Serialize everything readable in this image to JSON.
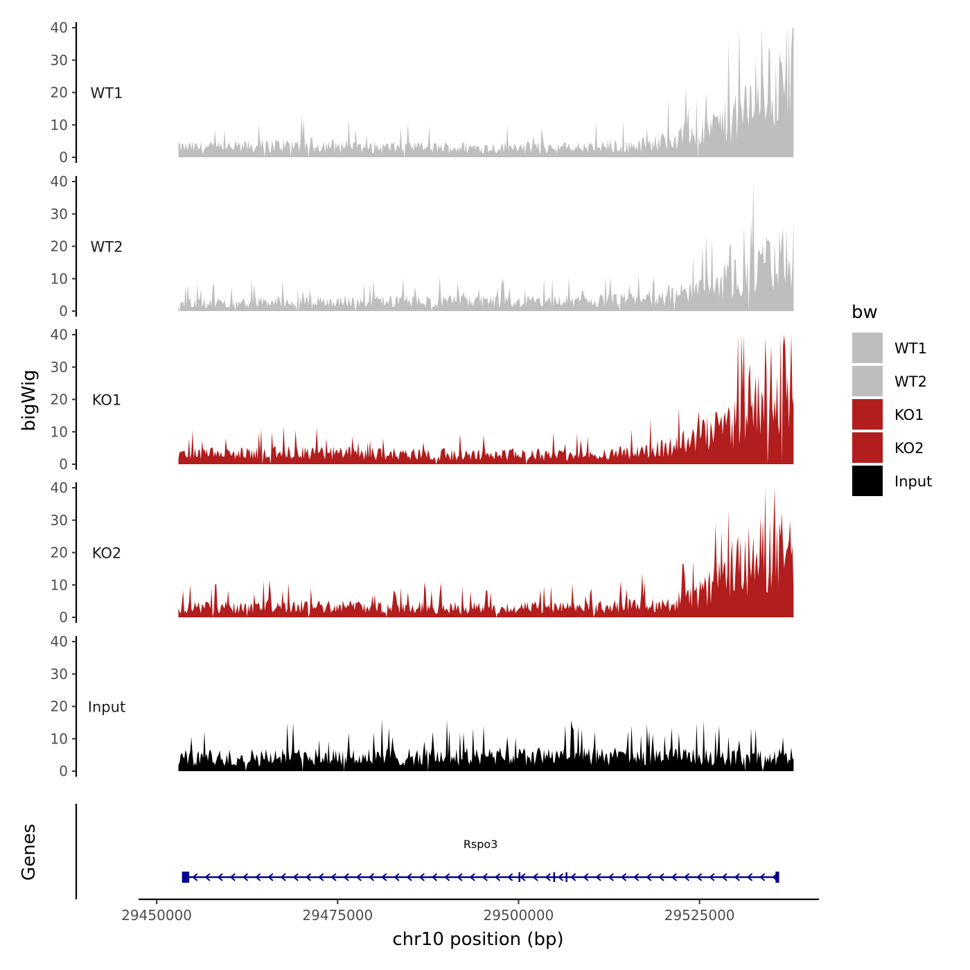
{
  "chart_data": {
    "type": "area",
    "title": "",
    "ylabel": "bigWig",
    "xlabel": "chr10 position (bp)",
    "chromosome": "chr10",
    "xlim": [
      29447500,
      29541500
    ],
    "ylim": [
      0,
      40
    ],
    "y_ticks": [
      0,
      10,
      20,
      30,
      40
    ],
    "x_ticks": [
      29450000,
      29475000,
      29500000,
      29525000
    ],
    "x_tick_labels": [
      "29450000",
      "29475000",
      "29500000",
      "29525000"
    ],
    "coverage_range": [
      29453000,
      29538000
    ],
    "series": [
      {
        "name": "WT1",
        "color": "#bebebe",
        "profile": [
          {
            "x": 29453000,
            "y": 3
          },
          {
            "x": 29460000,
            "y": 3
          },
          {
            "x": 29470000,
            "y": 4
          },
          {
            "x": 29480000,
            "y": 3
          },
          {
            "x": 29490000,
            "y": 3
          },
          {
            "x": 29500000,
            "y": 3
          },
          {
            "x": 29510000,
            "y": 3
          },
          {
            "x": 29518000,
            "y": 4
          },
          {
            "x": 29522000,
            "y": 6
          },
          {
            "x": 29526000,
            "y": 9
          },
          {
            "x": 29530000,
            "y": 12
          },
          {
            "x": 29532000,
            "y": 17
          },
          {
            "x": 29534000,
            "y": 22
          },
          {
            "x": 29538000,
            "y": 22
          }
        ]
      },
      {
        "name": "WT2",
        "color": "#bebebe",
        "profile": [
          {
            "x": 29453000,
            "y": 2.5
          },
          {
            "x": 29470000,
            "y": 3
          },
          {
            "x": 29490000,
            "y": 3
          },
          {
            "x": 29500000,
            "y": 3
          },
          {
            "x": 29510000,
            "y": 3
          },
          {
            "x": 29518000,
            "y": 4
          },
          {
            "x": 29524000,
            "y": 6
          },
          {
            "x": 29528000,
            "y": 9
          },
          {
            "x": 29532000,
            "y": 12
          },
          {
            "x": 29535000,
            "y": 15
          },
          {
            "x": 29538000,
            "y": 17
          }
        ]
      },
      {
        "name": "KO1",
        "color": "#b21d1d",
        "profile": [
          {
            "x": 29453000,
            "y": 3
          },
          {
            "x": 29470000,
            "y": 3.5
          },
          {
            "x": 29490000,
            "y": 3
          },
          {
            "x": 29500000,
            "y": 3
          },
          {
            "x": 29510000,
            "y": 3
          },
          {
            "x": 29518000,
            "y": 4
          },
          {
            "x": 29522000,
            "y": 6
          },
          {
            "x": 29526000,
            "y": 9
          },
          {
            "x": 29530000,
            "y": 13
          },
          {
            "x": 29532000,
            "y": 20
          },
          {
            "x": 29534000,
            "y": 25
          },
          {
            "x": 29538000,
            "y": 24
          }
        ]
      },
      {
        "name": "KO2",
        "color": "#b21d1d",
        "profile": [
          {
            "x": 29453000,
            "y": 3
          },
          {
            "x": 29470000,
            "y": 3.5
          },
          {
            "x": 29490000,
            "y": 3
          },
          {
            "x": 29500000,
            "y": 3
          },
          {
            "x": 29510000,
            "y": 3
          },
          {
            "x": 29518000,
            "y": 4
          },
          {
            "x": 29522000,
            "y": 5
          },
          {
            "x": 29526000,
            "y": 8
          },
          {
            "x": 29529000,
            "y": 14
          },
          {
            "x": 29532000,
            "y": 18
          },
          {
            "x": 29535000,
            "y": 20
          },
          {
            "x": 29538000,
            "y": 20
          }
        ]
      },
      {
        "name": "Input",
        "color": "#000000",
        "profile": [
          {
            "x": 29453000,
            "y": 4
          },
          {
            "x": 29470000,
            "y": 4.5
          },
          {
            "x": 29490000,
            "y": 4.5
          },
          {
            "x": 29510000,
            "y": 4.5
          },
          {
            "x": 29525000,
            "y": 4.5
          },
          {
            "x": 29538000,
            "y": 4.5
          }
        ]
      }
    ],
    "genes_track_label": "Genes",
    "genes": [
      {
        "name": "Rspo3",
        "start": 29453500,
        "end": 29536000,
        "strand": "-",
        "exons": [
          [
            29453500,
            29454500
          ],
          [
            29500000,
            29500200
          ],
          [
            29504800,
            29505000
          ],
          [
            29506500,
            29506700
          ],
          [
            29535500,
            29536000
          ]
        ]
      }
    ],
    "legend": {
      "title": "bw",
      "position": "right",
      "entries": [
        {
          "label": "WT1",
          "color": "#bebebe"
        },
        {
          "label": "WT2",
          "color": "#bebebe"
        },
        {
          "label": "KO1",
          "color": "#b21d1d"
        },
        {
          "label": "KO2",
          "color": "#b21d1d"
        },
        {
          "label": "Input",
          "color": "#000000"
        }
      ]
    },
    "gene_color": "#00008b"
  }
}
